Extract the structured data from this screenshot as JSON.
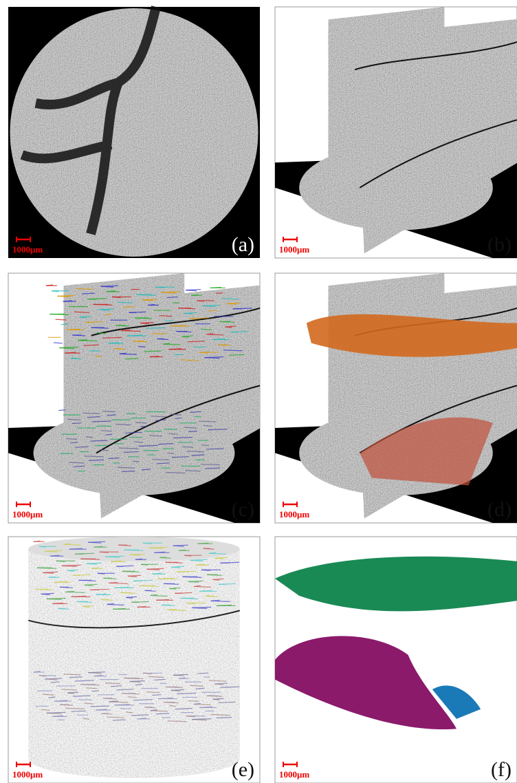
{
  "panels": [
    {
      "label": "(a)",
      "scale_bar": "1000μm"
    },
    {
      "label": "(b)",
      "scale_bar": "1000μm"
    },
    {
      "label": "(c)",
      "scale_bar": "1000μm"
    },
    {
      "label": "(d)",
      "scale_bar": "1000μm"
    },
    {
      "label": "(e)",
      "scale_bar": "1000μm"
    },
    {
      "label": "(f)",
      "scale_bar": "1000μm"
    }
  ]
}
